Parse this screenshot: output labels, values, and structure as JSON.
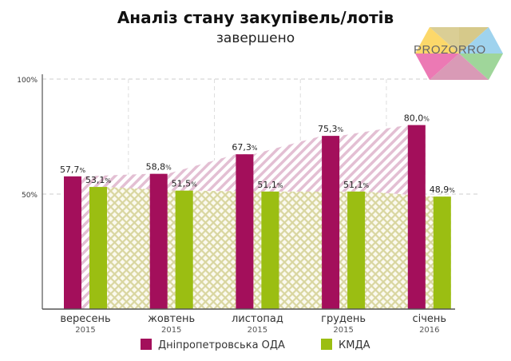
{
  "logo": "PROZORRO",
  "colors": {
    "series1": "#a30f5b",
    "series2": "#9bbe12",
    "hatch1": "#e3bfd3",
    "hatch2": "#d9d6a0"
  },
  "chart_data": {
    "type": "bar",
    "title": "Аналіз стану закупівель/лотів",
    "subtitle": "завершено",
    "categories": [
      "вересень",
      "жовтень",
      "листопад",
      "грудень",
      "січень"
    ],
    "years": [
      "2015",
      "2015",
      "2015",
      "2015",
      "2016"
    ],
    "ylim": [
      0,
      100
    ],
    "yticks": [
      "50%",
      "100%"
    ],
    "grid": true,
    "legend_position": "bottom",
    "series": [
      {
        "name": "Дніпропетровська ОДА",
        "values": [
          57.7,
          58.8,
          67.3,
          75.3,
          80.0
        ],
        "labels": [
          "57,7",
          "58,8",
          "67,3",
          "75,3",
          "80,0"
        ]
      },
      {
        "name": "КМДА",
        "values": [
          53.1,
          51.5,
          51.1,
          51.1,
          48.9
        ],
        "labels": [
          "53,1",
          "51,5",
          "51,1",
          "51,1",
          "48,9"
        ]
      }
    ],
    "unit": "%"
  }
}
